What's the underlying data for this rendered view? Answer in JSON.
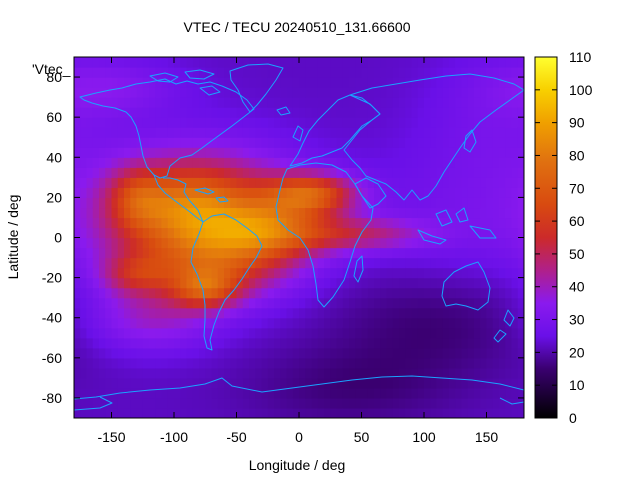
{
  "chart_data": {
    "type": "heatmap",
    "title": "VTEC / TECU 20240510_131.66600",
    "xlabel": "Longitude / deg",
    "ylabel": "Latitude / deg",
    "legend_label": "'Vtec_",
    "xlim": [
      -180,
      180
    ],
    "ylim": [
      -90,
      90
    ],
    "xticks": [
      -150,
      -100,
      -50,
      0,
      50,
      100,
      150
    ],
    "yticks": [
      -80,
      -60,
      -40,
      -20,
      0,
      20,
      40,
      60,
      80
    ],
    "xtick_labels": [
      "-150",
      "-100",
      "-50",
      "0",
      "50",
      "100",
      "150"
    ],
    "ytick_labels": [
      "-80",
      "-60",
      "-40",
      "-20",
      "0",
      "20",
      "40",
      "60",
      "80"
    ],
    "colorbar": {
      "range": [
        0,
        110
      ],
      "ticks": [
        0,
        10,
        20,
        30,
        40,
        50,
        60,
        70,
        80,
        90,
        100,
        110
      ],
      "tick_labels": [
        "0",
        "10",
        "20",
        "30",
        "40",
        "50",
        "60",
        "70",
        "80",
        "90",
        "100",
        "110"
      ],
      "stops": [
        {
          "value": 0,
          "color": "#000000"
        },
        {
          "value": 15,
          "color": "#3a0070"
        },
        {
          "value": 25,
          "color": "#6a10e8"
        },
        {
          "value": 35,
          "color": "#8a1aee"
        },
        {
          "value": 45,
          "color": "#b0208a"
        },
        {
          "value": 55,
          "color": "#cc2a2a"
        },
        {
          "value": 65,
          "color": "#d84a10"
        },
        {
          "value": 78,
          "color": "#e07010"
        },
        {
          "value": 90,
          "color": "#f0a000"
        },
        {
          "value": 100,
          "color": "#f8d000"
        },
        {
          "value": 110,
          "color": "#ffff30"
        }
      ]
    },
    "grid": {
      "lon_step": 5,
      "lat_step": 5
    },
    "field": {
      "background": 22,
      "components": [
        {
          "lon": -150,
          "lat": 75,
          "value": 10,
          "slon": 40,
          "slat": 10
        },
        {
          "lon": 160,
          "lat": 60,
          "value": 6,
          "slon": 40,
          "slat": 25
        },
        {
          "lon": -80,
          "lat": 10,
          "value": 48,
          "slon": 55,
          "slat": 22
        },
        {
          "lon": -90,
          "lat": 18,
          "value": 15,
          "slon": 30,
          "slat": 12
        },
        {
          "lon": -60,
          "lat": -10,
          "value": 20,
          "slon": 40,
          "slat": 14
        },
        {
          "lon": -75,
          "lat": -25,
          "value": 30,
          "slon": 18,
          "slat": 7
        },
        {
          "lon": -130,
          "lat": -18,
          "value": 20,
          "slon": 20,
          "slat": 7
        },
        {
          "lon": -130,
          "lat": 20,
          "value": 18,
          "slon": 15,
          "slat": 10
        },
        {
          "lon": 10,
          "lat": 22,
          "value": 40,
          "slon": 25,
          "slat": 7
        },
        {
          "lon": -20,
          "lat": 5,
          "value": 25,
          "slon": 30,
          "slat": 10
        },
        {
          "lon": 45,
          "lat": 2,
          "value": 22,
          "slon": 40,
          "slat": 6
        },
        {
          "lon": -120,
          "lat": -40,
          "value": 15,
          "slon": 35,
          "slat": 12
        },
        {
          "lon": 110,
          "lat": -40,
          "value": -8,
          "slon": 60,
          "slat": 20
        },
        {
          "lon": 120,
          "lat": 5,
          "value": 6,
          "slon": 50,
          "slat": 30
        },
        {
          "lon": 40,
          "lat": -75,
          "value": -6,
          "slon": 60,
          "slat": 15
        }
      ]
    }
  }
}
